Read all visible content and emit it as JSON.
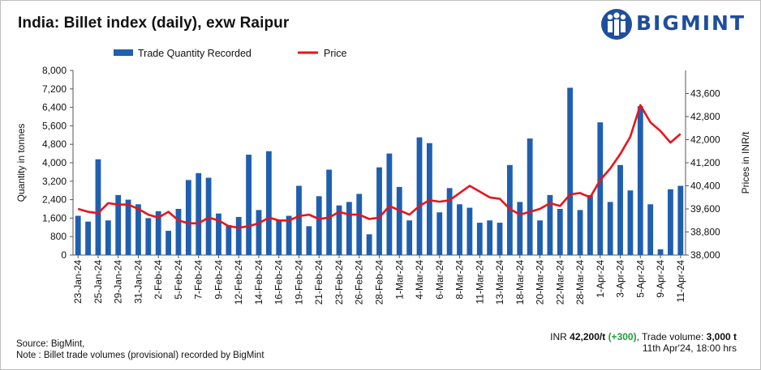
{
  "header": {
    "title": "India: Billet index (daily), exw Raipur",
    "brand": "BIGMINT"
  },
  "colors": {
    "bar": "#1f5fb0",
    "line": "#e8141c",
    "brand": "#1f4e9c",
    "positive_change": "#1e9e3a"
  },
  "footer": {
    "source": "Source: BigMint,",
    "note": "Note : Billet trade volumes (provisional) recorded by BigMint"
  },
  "summary": {
    "price_prefix": "INR ",
    "price_value": "42,200/t",
    "change": "(+300)",
    "volume_label": ", Trade volume: ",
    "volume_value": "3,000 t",
    "timestamp": "11th Apr'24, 18:00 hrs"
  },
  "chart_data": {
    "type": "bar+line",
    "legend": [
      "Trade Quantity Recorded",
      "Price"
    ],
    "legend_position": "top-center",
    "ylabel_left": "Quantity in tonnes",
    "ylabel_right": "Prices in INR/t",
    "ylim_left": [
      0,
      8000
    ],
    "yticks_left": [
      "0",
      "800",
      "1,600",
      "2,400",
      "3,200",
      "4,000",
      "4,800",
      "5,600",
      "6,400",
      "7,200",
      "8,000"
    ],
    "ylim_right": [
      38000,
      44400
    ],
    "yticks_right": [
      "38,000",
      "38,800",
      "39,600",
      "40,400",
      "41,200",
      "42,000",
      "42,800",
      "43,600"
    ],
    "grid": false,
    "x_tick_labels": [
      "23-Jan-24",
      "25-Jan-24",
      "29-Jan-24",
      "31-Jan-24",
      "2-Feb-24",
      "5-Feb-24",
      "7-Feb-24",
      "9-Feb-24",
      "12-Feb-24",
      "14-Feb-24",
      "16-Feb-24",
      "19-Feb-24",
      "21-Feb-24",
      "23-Feb-24",
      "26-Feb-24",
      "28-Feb-24",
      "1-Mar-24",
      "4-Mar-24",
      "6-Mar-24",
      "8-Mar-24",
      "11-Mar-24",
      "13-Mar-24",
      "18-Mar-24",
      "20-Mar-24",
      "22-Mar-24",
      "28-Mar-24",
      "1-Apr-24",
      "3-Apr-24",
      "5-Apr-24",
      "9-Apr-24",
      "11-Apr-24"
    ],
    "series": [
      {
        "name": "Trade Quantity Recorded",
        "type": "bar",
        "values": [
          1700,
          1450,
          4150,
          1500,
          2600,
          2400,
          2200,
          1600,
          1900,
          1050,
          2000,
          3250,
          3550,
          3350,
          1800,
          1300,
          1650,
          4350,
          1950,
          4500,
          1500,
          1700,
          3000,
          1250,
          2550,
          3700,
          2150,
          2300,
          2650,
          900,
          3800,
          4400,
          2950,
          1500,
          5100,
          4850,
          1850,
          2900,
          2200,
          2050,
          1400,
          1500,
          1400,
          3900,
          2300,
          5050,
          1500,
          2600,
          2000,
          7250,
          1950,
          2600,
          5750,
          2300,
          3900,
          2800,
          6450,
          2200,
          250,
          2850,
          3000
        ]
      },
      {
        "name": "Price",
        "type": "line",
        "values": [
          39600,
          39500,
          39450,
          39800,
          39750,
          39750,
          39600,
          39400,
          39300,
          39500,
          39200,
          39100,
          39100,
          39300,
          39200,
          39000,
          38950,
          39000,
          39100,
          39300,
          39200,
          39200,
          39350,
          39400,
          39250,
          39300,
          39500,
          39400,
          39400,
          39250,
          39300,
          39700,
          39550,
          39400,
          39700,
          39900,
          39850,
          39900,
          40150,
          40400,
          40200,
          40000,
          39950,
          39600,
          39400,
          39500,
          39600,
          39800,
          39700,
          40100,
          40150,
          40000,
          40600,
          41000,
          41500,
          42100,
          43200,
          42600,
          42300,
          41900,
          42200
        ]
      }
    ]
  }
}
